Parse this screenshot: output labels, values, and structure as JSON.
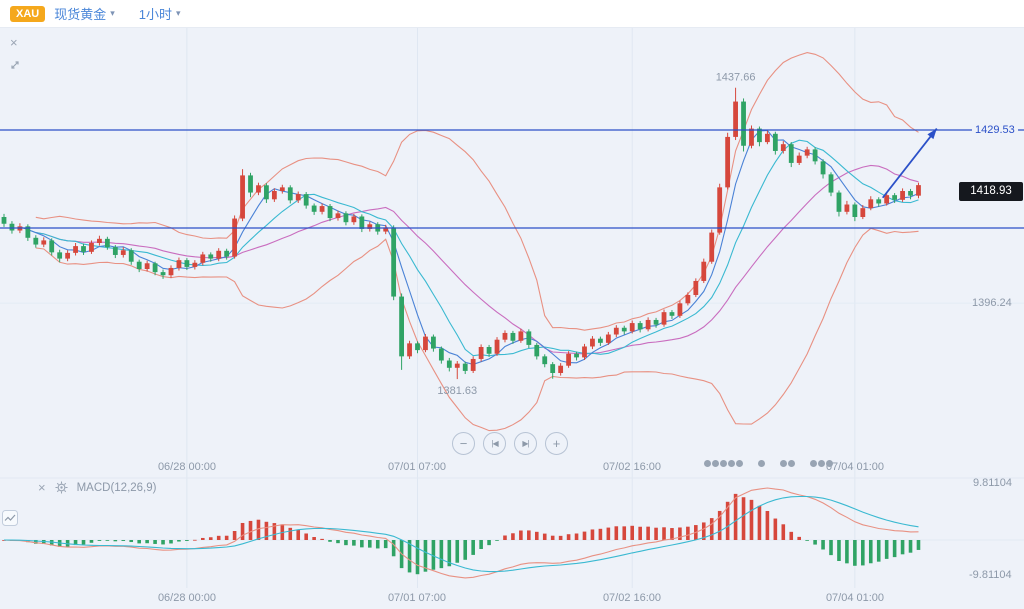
{
  "header": {
    "symbol_badge": "XAU",
    "symbol_name": "现货黄金",
    "timeframe": "1小时"
  },
  "icons": {
    "close": "×",
    "caret_down": "▾"
  },
  "nav_controls": {
    "zoom_out": "−",
    "step_back": "|◀",
    "step_forward": "▶|",
    "zoom_in": "+"
  },
  "main_chart": {
    "hline_price_label": "1429.53",
    "last_price_label": "1418.93",
    "axis_tick_label": "1396.24"
  },
  "time_axis": {
    "labels": [
      "06/28 00:00",
      "07/01 07:00",
      "07/02 16:00",
      "07/04 01:00"
    ]
  },
  "macd_panel": {
    "indicator_label": "MACD(12,26,9)",
    "axis_max": "9.81104",
    "axis_min": "-9.81104"
  },
  "chart_data": {
    "type": "candlestick",
    "title": "XAU 现货黄金 1小时",
    "y_axis": {
      "ticks": [
        1429.53,
        1396.24
      ],
      "last_price": 1418.93
    },
    "x_axis": {
      "tick_indices": [
        23,
        52,
        79,
        107
      ]
    },
    "horizontal_lines": [
      1429.53,
      1410.68
    ],
    "annotations": {
      "high": {
        "index": 92,
        "price": 1437.66
      },
      "low": {
        "index": 57,
        "price": 1381.63
      },
      "trend_arrow": {
        "from_index": 110.5,
        "from_price": 1416.5,
        "to_index": 117.3,
        "to_price": 1429.8
      }
    },
    "indicators": {
      "bollinger": {
        "period": 20,
        "deviation": 2
      },
      "ma_periods": [
        5,
        10
      ],
      "macd": {
        "fast": 12,
        "slow": 26,
        "signal": 9,
        "axis_max": 9.81104,
        "axis_min": -9.81104
      }
    },
    "decorations": {
      "marker_dot_groups": [
        5,
        1,
        2,
        3
      ]
    },
    "colors": {
      "up": "#d6473c",
      "down": "#2fa365",
      "boll_band": "#e89183",
      "boll_mid": "#c96dbf",
      "ma_fast": "#4a82d6",
      "ma_slow": "#3ab9d1",
      "macd_dif": "#e89183",
      "macd_dea": "#3ab9d1",
      "trend": "#2b50c8"
    },
    "candles": [
      [
        1412.8,
        1413.4,
        1410.9,
        1411.5
      ],
      [
        1411.5,
        1412.0,
        1409.6,
        1410.2
      ],
      [
        1410.2,
        1411.6,
        1409.7,
        1411.0
      ],
      [
        1411.0,
        1411.4,
        1408.2,
        1408.8
      ],
      [
        1408.8,
        1409.3,
        1406.9,
        1407.5
      ],
      [
        1407.5,
        1408.9,
        1407.0,
        1408.3
      ],
      [
        1408.3,
        1408.7,
        1405.4,
        1406.0
      ],
      [
        1406.0,
        1406.5,
        1404.1,
        1404.8
      ],
      [
        1404.8,
        1406.4,
        1404.3,
        1405.9
      ],
      [
        1405.9,
        1407.8,
        1405.4,
        1407.2
      ],
      [
        1407.2,
        1407.7,
        1405.5,
        1406.1
      ],
      [
        1406.1,
        1408.3,
        1405.7,
        1407.8
      ],
      [
        1407.8,
        1409.2,
        1407.3,
        1408.6
      ],
      [
        1408.6,
        1409.0,
        1406.5,
        1407.0
      ],
      [
        1407.0,
        1407.4,
        1404.9,
        1405.5
      ],
      [
        1405.5,
        1407.0,
        1405.0,
        1406.4
      ],
      [
        1406.4,
        1406.8,
        1403.6,
        1404.2
      ],
      [
        1404.2,
        1404.6,
        1402.2,
        1402.8
      ],
      [
        1402.8,
        1404.4,
        1402.3,
        1403.9
      ],
      [
        1403.9,
        1404.2,
        1401.6,
        1402.2
      ],
      [
        1402.2,
        1402.7,
        1400.9,
        1401.6
      ],
      [
        1401.6,
        1403.5,
        1401.1,
        1403.0
      ],
      [
        1403.0,
        1405.0,
        1402.5,
        1404.5
      ],
      [
        1404.5,
        1404.9,
        1402.6,
        1403.2
      ],
      [
        1403.2,
        1404.5,
        1402.7,
        1404.0
      ],
      [
        1404.0,
        1406.1,
        1403.5,
        1405.6
      ],
      [
        1405.6,
        1406.0,
        1404.2,
        1404.8
      ],
      [
        1404.8,
        1406.8,
        1404.3,
        1406.3
      ],
      [
        1406.3,
        1406.7,
        1404.6,
        1405.2
      ],
      [
        1405.2,
        1413.1,
        1404.8,
        1412.5
      ],
      [
        1412.5,
        1422.0,
        1412.0,
        1420.8
      ],
      [
        1420.8,
        1421.3,
        1416.6,
        1417.5
      ],
      [
        1417.5,
        1419.4,
        1417.0,
        1418.9
      ],
      [
        1418.9,
        1419.3,
        1415.5,
        1416.2
      ],
      [
        1416.2,
        1418.3,
        1415.7,
        1417.8
      ],
      [
        1417.8,
        1419.0,
        1417.3,
        1418.5
      ],
      [
        1418.5,
        1418.9,
        1415.4,
        1416.0
      ],
      [
        1416.0,
        1417.7,
        1415.5,
        1417.2
      ],
      [
        1417.2,
        1417.6,
        1414.4,
        1415.0
      ],
      [
        1415.0,
        1415.4,
        1413.2,
        1413.8
      ],
      [
        1413.8,
        1415.4,
        1413.3,
        1414.9
      ],
      [
        1414.9,
        1415.3,
        1412.0,
        1412.6
      ],
      [
        1412.6,
        1414.0,
        1412.1,
        1413.5
      ],
      [
        1413.5,
        1413.9,
        1411.2,
        1411.8
      ],
      [
        1411.8,
        1413.4,
        1411.3,
        1412.9
      ],
      [
        1412.9,
        1413.3,
        1409.9,
        1410.5
      ],
      [
        1410.5,
        1411.9,
        1410.0,
        1411.4
      ],
      [
        1411.4,
        1411.8,
        1409.4,
        1410.0
      ],
      [
        1410.0,
        1411.3,
        1409.5,
        1410.8
      ],
      [
        1410.8,
        1411.2,
        1396.8,
        1397.5
      ],
      [
        1397.5,
        1398.1,
        1383.4,
        1386.0
      ],
      [
        1386.0,
        1389.0,
        1385.5,
        1388.5
      ],
      [
        1388.5,
        1388.9,
        1386.6,
        1387.2
      ],
      [
        1387.2,
        1390.3,
        1386.8,
        1389.8
      ],
      [
        1389.8,
        1390.2,
        1386.9,
        1387.5
      ],
      [
        1387.5,
        1387.9,
        1384.6,
        1385.2
      ],
      [
        1385.2,
        1385.7,
        1383.1,
        1383.8
      ],
      [
        1383.8,
        1385.1,
        1381.63,
        1384.6
      ],
      [
        1384.6,
        1385.0,
        1382.6,
        1383.2
      ],
      [
        1383.2,
        1386.0,
        1382.8,
        1385.5
      ],
      [
        1385.5,
        1388.3,
        1385.0,
        1387.8
      ],
      [
        1387.8,
        1388.2,
        1385.9,
        1386.5
      ],
      [
        1386.5,
        1389.7,
        1386.1,
        1389.2
      ],
      [
        1389.2,
        1391.0,
        1388.7,
        1390.5
      ],
      [
        1390.5,
        1390.9,
        1388.4,
        1389.0
      ],
      [
        1389.0,
        1391.3,
        1388.6,
        1390.8
      ],
      [
        1390.8,
        1391.2,
        1387.6,
        1388.2
      ],
      [
        1388.2,
        1388.6,
        1385.4,
        1386.0
      ],
      [
        1386.0,
        1386.4,
        1383.9,
        1384.5
      ],
      [
        1384.5,
        1384.9,
        1381.7,
        1382.8
      ],
      [
        1382.8,
        1384.7,
        1382.3,
        1384.2
      ],
      [
        1384.2,
        1387.0,
        1383.8,
        1386.5
      ],
      [
        1386.5,
        1386.9,
        1385.2,
        1385.8
      ],
      [
        1385.8,
        1388.4,
        1385.3,
        1387.9
      ],
      [
        1387.9,
        1389.9,
        1387.4,
        1389.4
      ],
      [
        1389.4,
        1389.8,
        1388.0,
        1388.6
      ],
      [
        1388.6,
        1390.7,
        1388.2,
        1390.2
      ],
      [
        1390.2,
        1392.0,
        1389.7,
        1391.5
      ],
      [
        1391.5,
        1391.9,
        1390.2,
        1390.8
      ],
      [
        1390.8,
        1392.9,
        1390.4,
        1392.4
      ],
      [
        1392.4,
        1392.8,
        1390.6,
        1391.2
      ],
      [
        1391.2,
        1393.5,
        1390.8,
        1393.0
      ],
      [
        1393.0,
        1393.4,
        1391.5,
        1392.1
      ],
      [
        1392.1,
        1395.0,
        1391.7,
        1394.5
      ],
      [
        1394.5,
        1394.9,
        1393.2,
        1393.8
      ],
      [
        1393.8,
        1396.7,
        1393.4,
        1396.2
      ],
      [
        1396.2,
        1398.3,
        1395.8,
        1397.8
      ],
      [
        1397.8,
        1401.0,
        1397.4,
        1400.5
      ],
      [
        1400.5,
        1404.8,
        1400.1,
        1404.2
      ],
      [
        1404.2,
        1410.4,
        1403.8,
        1409.8
      ],
      [
        1409.8,
        1419.2,
        1409.4,
        1418.5
      ],
      [
        1418.5,
        1429.0,
        1418.1,
        1428.2
      ],
      [
        1428.2,
        1437.66,
        1427.6,
        1435.0
      ],
      [
        1435.0,
        1435.6,
        1425.4,
        1426.5
      ],
      [
        1426.5,
        1430.4,
        1426.0,
        1429.8
      ],
      [
        1429.8,
        1430.2,
        1426.4,
        1427.2
      ],
      [
        1427.2,
        1429.4,
        1426.8,
        1428.8
      ],
      [
        1428.8,
        1429.2,
        1424.8,
        1425.5
      ],
      [
        1425.5,
        1427.4,
        1425.0,
        1426.8
      ],
      [
        1426.8,
        1427.2,
        1422.4,
        1423.2
      ],
      [
        1423.2,
        1425.2,
        1422.8,
        1424.6
      ],
      [
        1424.6,
        1426.3,
        1424.1,
        1425.8
      ],
      [
        1425.8,
        1426.2,
        1422.9,
        1423.5
      ],
      [
        1423.5,
        1423.9,
        1420.2,
        1421.0
      ],
      [
        1421.0,
        1421.4,
        1416.8,
        1417.5
      ],
      [
        1417.5,
        1417.9,
        1412.9,
        1413.8
      ],
      [
        1413.8,
        1415.9,
        1413.3,
        1415.2
      ],
      [
        1415.2,
        1415.6,
        1412.0,
        1412.8
      ],
      [
        1412.8,
        1415.1,
        1412.4,
        1414.5
      ],
      [
        1414.5,
        1416.8,
        1414.1,
        1416.2
      ],
      [
        1416.2,
        1416.6,
        1414.8,
        1415.4
      ],
      [
        1415.4,
        1417.6,
        1415.0,
        1417.0
      ],
      [
        1417.0,
        1417.4,
        1415.5,
        1416.1
      ],
      [
        1416.1,
        1418.3,
        1415.7,
        1417.8
      ],
      [
        1417.8,
        1418.2,
        1416.2,
        1416.9
      ],
      [
        1416.9,
        1419.4,
        1416.4,
        1418.93
      ]
    ]
  }
}
